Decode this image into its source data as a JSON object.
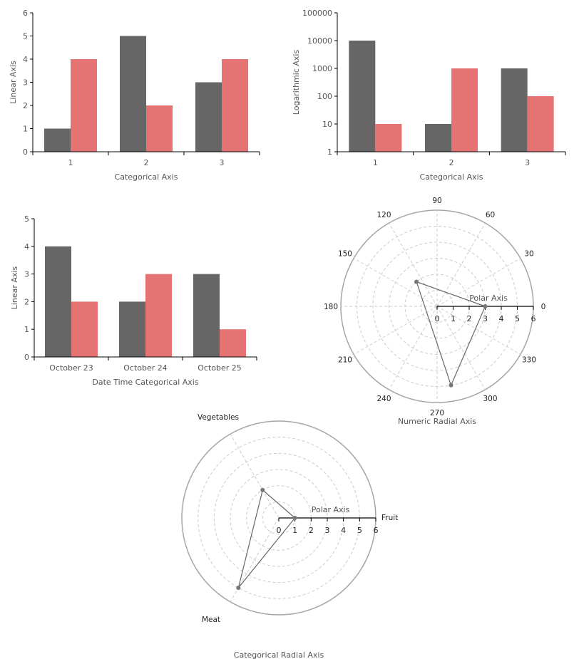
{
  "colors": {
    "series1": "#666666",
    "series2": "#e57373",
    "axis": "#000000",
    "grid": "#cccccc",
    "rim": "#a6a6a6"
  },
  "chart_data": [
    {
      "type": "bar",
      "categories": [
        "1",
        "2",
        "3"
      ],
      "series": [
        {
          "values": [
            1,
            5,
            3
          ]
        },
        {
          "values": [
            4,
            2,
            4
          ]
        }
      ],
      "xlabel": "Categorical Axis",
      "ylabel": "Linear Axis",
      "ylim": [
        0,
        6
      ],
      "yticks": [
        "0",
        "1",
        "2",
        "3",
        "4",
        "5",
        "6"
      ],
      "yscale": "linear",
      "grid": false
    },
    {
      "type": "bar",
      "categories": [
        "1",
        "2",
        "3"
      ],
      "series": [
        {
          "values": [
            10000,
            10,
            1000
          ]
        },
        {
          "values": [
            10,
            1000,
            100
          ]
        }
      ],
      "xlabel": "Categorical Axis",
      "ylabel": "Logarithmic Axis",
      "ylim": [
        1,
        100000
      ],
      "yticks": [
        "1",
        "10",
        "100",
        "1000",
        "10000",
        "100000"
      ],
      "yscale": "log",
      "grid": false
    },
    {
      "type": "bar",
      "categories": [
        "October 23",
        "October 24",
        "October 25"
      ],
      "series": [
        {
          "values": [
            4,
            2,
            3
          ]
        },
        {
          "values": [
            2,
            3,
            1
          ]
        }
      ],
      "xlabel": "Date Time Categorical Axis",
      "ylabel": "Linear Axis",
      "ylim": [
        0,
        5
      ],
      "yticks": [
        "0",
        "1",
        "2",
        "3",
        "4",
        "5"
      ],
      "yscale": "linear",
      "grid": false
    },
    {
      "type": "polar-line",
      "title": "Numeric Radial Axis",
      "polar_axis_label": "Polar Axis",
      "rlim": [
        0,
        6
      ],
      "rticks": [
        "0",
        "1",
        "2",
        "3",
        "4",
        "5",
        "6"
      ],
      "angle_ticks": [
        "0",
        "30",
        "60",
        "90",
        "120",
        "150",
        "180",
        "210",
        "240",
        "270",
        "300",
        "330"
      ],
      "points": [
        {
          "angle": 0,
          "r": 3
        },
        {
          "angle": 130,
          "r": 2
        },
        {
          "angle": 280,
          "r": 5
        }
      ],
      "closed": true
    },
    {
      "type": "radar",
      "title": "Categorical Radial Axis",
      "polar_axis_label": "Polar Axis",
      "rlim": [
        0,
        6
      ],
      "rticks": [
        "0",
        "1",
        "2",
        "3",
        "4",
        "5",
        "6"
      ],
      "categories": [
        "Fruit",
        "Vegetables",
        "Meat"
      ],
      "values": [
        1,
        2,
        5
      ],
      "closed": true
    }
  ]
}
